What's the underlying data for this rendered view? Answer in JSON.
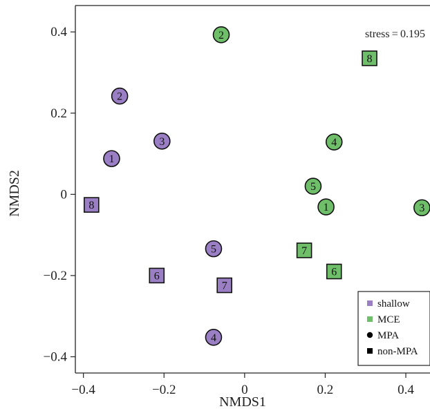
{
  "chart_data": {
    "type": "scatter",
    "title": "",
    "xlabel": "NMDS1",
    "ylabel": "NMDS2",
    "xlim": [
      -0.42,
      0.46
    ],
    "ylim": [
      -0.44,
      0.465
    ],
    "xticks": [
      -0.4,
      -0.2,
      0,
      0.2,
      0.4
    ],
    "xtick_labels": [
      "−0.4",
      "−0.2",
      "0",
      "0.2",
      "0.4"
    ],
    "yticks": [
      -0.4,
      -0.2,
      0,
      0.2,
      0.4
    ],
    "ytick_labels": [
      "−0.4",
      "−0.2",
      "0",
      "0.2",
      "0.4"
    ],
    "grid": false,
    "annotation": "stress = 0.195",
    "legend_position": "bottom-right",
    "legend": [
      {
        "label": "shallow",
        "marker": "square",
        "color": "#9b7fc4"
      },
      {
        "label": "MCE",
        "marker": "square",
        "color": "#6fbf6a"
      },
      {
        "label": "MPA",
        "marker": "circle",
        "color": "#000000"
      },
      {
        "label": "non-MPA",
        "marker": "square",
        "color": "#000000"
      }
    ],
    "colors": {
      "shallow": "#9b7fc4",
      "MCE": "#6fbf6a"
    },
    "points": [
      {
        "label": "1",
        "x": -0.33,
        "y": 0.088,
        "group": "shallow",
        "shape": "circle"
      },
      {
        "label": "2",
        "x": -0.31,
        "y": 0.242,
        "group": "shallow",
        "shape": "circle"
      },
      {
        "label": "3",
        "x": -0.205,
        "y": 0.131,
        "group": "shallow",
        "shape": "circle"
      },
      {
        "label": "4",
        "x": -0.077,
        "y": -0.352,
        "group": "shallow",
        "shape": "circle"
      },
      {
        "label": "5",
        "x": -0.077,
        "y": -0.134,
        "group": "shallow",
        "shape": "circle"
      },
      {
        "label": "6",
        "x": -0.218,
        "y": -0.2,
        "group": "shallow",
        "shape": "square"
      },
      {
        "label": "7",
        "x": -0.05,
        "y": -0.224,
        "group": "shallow",
        "shape": "square"
      },
      {
        "label": "8",
        "x": -0.38,
        "y": -0.026,
        "group": "shallow",
        "shape": "square"
      },
      {
        "label": "1",
        "x": 0.202,
        "y": -0.031,
        "group": "MCE",
        "shape": "circle"
      },
      {
        "label": "2",
        "x": -0.058,
        "y": 0.393,
        "group": "MCE",
        "shape": "circle"
      },
      {
        "label": "3",
        "x": 0.44,
        "y": -0.033,
        "group": "MCE",
        "shape": "circle"
      },
      {
        "label": "4",
        "x": 0.222,
        "y": 0.129,
        "group": "MCE",
        "shape": "circle"
      },
      {
        "label": "5",
        "x": 0.17,
        "y": 0.02,
        "group": "MCE",
        "shape": "circle"
      },
      {
        "label": "6",
        "x": 0.222,
        "y": -0.19,
        "group": "MCE",
        "shape": "square"
      },
      {
        "label": "7",
        "x": 0.148,
        "y": -0.138,
        "group": "MCE",
        "shape": "square"
      },
      {
        "label": "8",
        "x": 0.31,
        "y": 0.335,
        "group": "MCE",
        "shape": "square"
      }
    ]
  }
}
